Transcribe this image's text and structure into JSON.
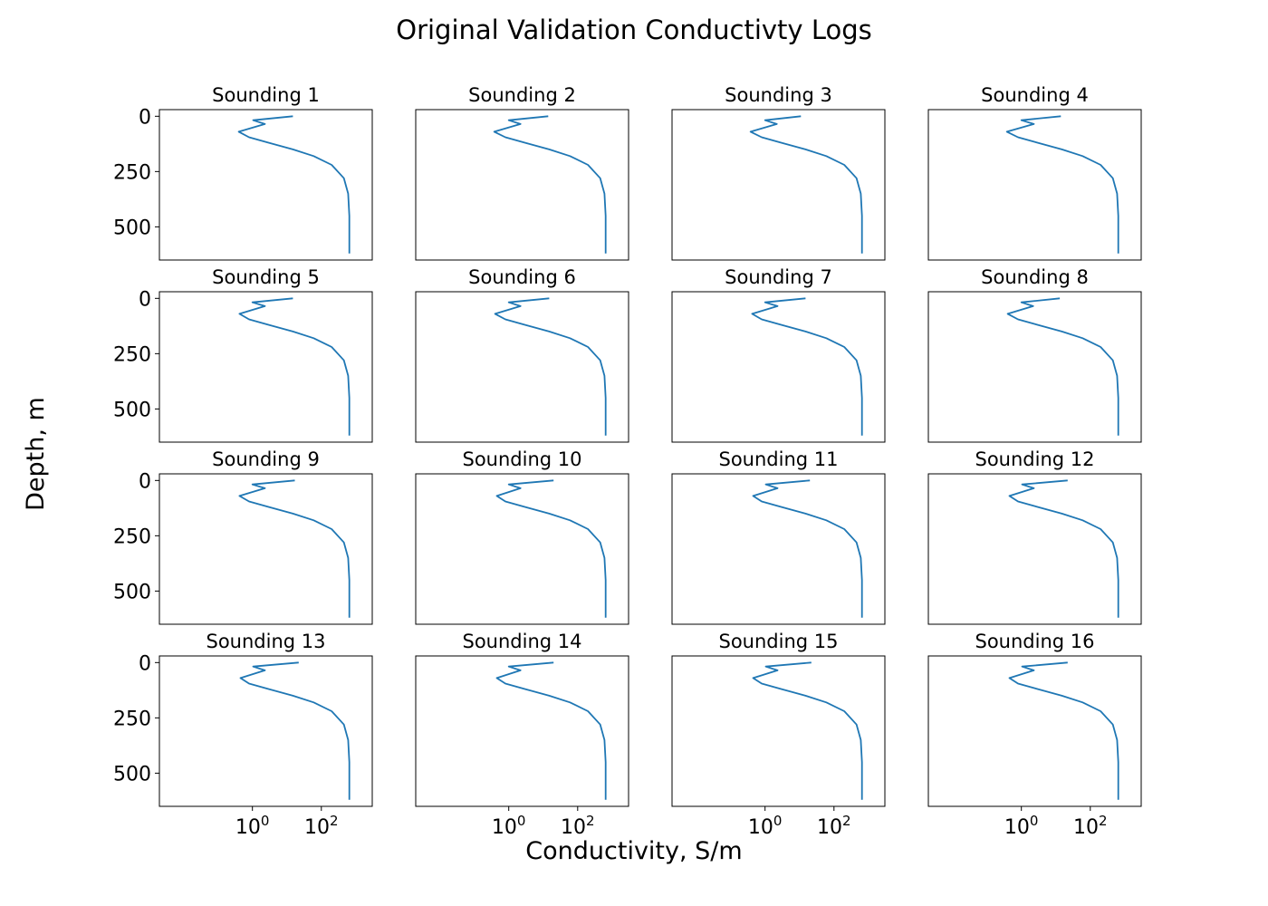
{
  "figure": {
    "title": "Original Validation Conductivty Logs",
    "xlabel": "Conductivity, S/m",
    "ylabel": "Depth, m"
  },
  "chart_data": {
    "type": "line",
    "layout": "4x4 grid of subplots",
    "x_scale": "log",
    "y_inverted": true,
    "xlim": [
      0.002,
      3000
    ],
    "ylim": [
      650,
      -30
    ],
    "xticks": [
      {
        "value": 1,
        "label": "10^0"
      },
      {
        "value": 100,
        "label": "10^2"
      }
    ],
    "yticks": [
      0,
      250,
      500
    ],
    "grid": false,
    "line_color": "#1f77b4",
    "subplots": [
      {
        "title": "Sounding 1",
        "x": [
          15,
          1.05,
          2.3,
          0.4,
          0.8,
          3,
          15,
          60,
          200,
          450,
          600,
          650,
          650
        ],
        "y": [
          0,
          18,
          35,
          70,
          95,
          120,
          150,
          180,
          220,
          280,
          350,
          450,
          620
        ]
      },
      {
        "title": "Sounding 2",
        "x": [
          14,
          1.0,
          2.2,
          0.38,
          0.8,
          3,
          15,
          60,
          200,
          450,
          600,
          650,
          650
        ],
        "y": [
          0,
          18,
          35,
          70,
          95,
          120,
          150,
          180,
          220,
          280,
          350,
          450,
          620
        ]
      },
      {
        "title": "Sounding 3",
        "x": [
          11,
          1.0,
          2.2,
          0.38,
          0.8,
          3,
          15,
          60,
          200,
          450,
          600,
          650,
          650
        ],
        "y": [
          0,
          18,
          35,
          70,
          95,
          120,
          150,
          180,
          220,
          280,
          350,
          450,
          620
        ]
      },
      {
        "title": "Sounding 4",
        "x": [
          14,
          1.0,
          2.3,
          0.38,
          0.8,
          3,
          15,
          60,
          200,
          450,
          600,
          650,
          650
        ],
        "y": [
          0,
          18,
          35,
          70,
          95,
          120,
          150,
          180,
          220,
          280,
          350,
          450,
          620
        ]
      },
      {
        "title": "Sounding 5",
        "x": [
          15,
          1.0,
          2.3,
          0.42,
          0.8,
          3,
          15,
          60,
          200,
          450,
          600,
          650,
          650
        ],
        "y": [
          0,
          18,
          35,
          70,
          95,
          120,
          150,
          180,
          220,
          280,
          350,
          450,
          620
        ]
      },
      {
        "title": "Sounding 6",
        "x": [
          15,
          1.0,
          2.2,
          0.4,
          0.8,
          3,
          15,
          60,
          200,
          450,
          600,
          650,
          650
        ],
        "y": [
          0,
          18,
          35,
          70,
          95,
          120,
          150,
          180,
          220,
          280,
          350,
          450,
          620
        ]
      },
      {
        "title": "Sounding 7",
        "x": [
          15,
          1.0,
          2.3,
          0.42,
          0.8,
          3,
          15,
          60,
          200,
          450,
          600,
          650,
          650
        ],
        "y": [
          0,
          18,
          35,
          70,
          95,
          120,
          150,
          180,
          220,
          280,
          350,
          450,
          620
        ]
      },
      {
        "title": "Sounding 8",
        "x": [
          13,
          1.0,
          2.2,
          0.4,
          0.8,
          3,
          15,
          60,
          200,
          450,
          600,
          650,
          650
        ],
        "y": [
          0,
          18,
          35,
          70,
          95,
          120,
          150,
          180,
          220,
          280,
          350,
          450,
          620
        ]
      },
      {
        "title": "Sounding 9",
        "x": [
          17,
          1.0,
          2.3,
          0.42,
          0.8,
          3,
          15,
          60,
          200,
          450,
          600,
          650,
          650
        ],
        "y": [
          0,
          18,
          35,
          70,
          95,
          120,
          150,
          180,
          220,
          280,
          350,
          450,
          620
        ]
      },
      {
        "title": "Sounding 10",
        "x": [
          20,
          1.0,
          2.2,
          0.45,
          0.8,
          3,
          15,
          60,
          200,
          450,
          600,
          650,
          650
        ],
        "y": [
          0,
          18,
          35,
          70,
          95,
          120,
          150,
          180,
          220,
          280,
          350,
          450,
          620
        ]
      },
      {
        "title": "Sounding 11",
        "x": [
          20,
          1.05,
          2.3,
          0.45,
          0.8,
          3,
          15,
          60,
          200,
          450,
          600,
          650,
          650
        ],
        "y": [
          0,
          18,
          35,
          70,
          95,
          120,
          150,
          180,
          220,
          280,
          350,
          450,
          620
        ]
      },
      {
        "title": "Sounding 12",
        "x": [
          22,
          1.05,
          2.3,
          0.45,
          0.8,
          3,
          15,
          60,
          200,
          450,
          600,
          650,
          650
        ],
        "y": [
          0,
          18,
          35,
          70,
          95,
          120,
          150,
          180,
          220,
          280,
          350,
          450,
          620
        ]
      },
      {
        "title": "Sounding 13",
        "x": [
          22,
          1.05,
          2.3,
          0.45,
          0.8,
          3,
          15,
          60,
          200,
          450,
          600,
          650,
          650
        ],
        "y": [
          0,
          18,
          35,
          70,
          95,
          120,
          150,
          180,
          220,
          280,
          350,
          450,
          620
        ]
      },
      {
        "title": "Sounding 14",
        "x": [
          20,
          1.0,
          2.2,
          0.45,
          0.8,
          3,
          15,
          60,
          200,
          450,
          600,
          650,
          650
        ],
        "y": [
          0,
          18,
          35,
          70,
          95,
          120,
          150,
          180,
          220,
          280,
          350,
          450,
          620
        ]
      },
      {
        "title": "Sounding 15",
        "x": [
          22,
          1.05,
          2.3,
          0.45,
          0.8,
          3,
          15,
          60,
          200,
          450,
          600,
          650,
          650
        ],
        "y": [
          0,
          18,
          35,
          70,
          95,
          120,
          150,
          180,
          220,
          280,
          350,
          450,
          620
        ]
      },
      {
        "title": "Sounding 16",
        "x": [
          22,
          1.05,
          2.3,
          0.45,
          0.8,
          3,
          15,
          60,
          200,
          450,
          600,
          650,
          650
        ],
        "y": [
          0,
          18,
          35,
          70,
          95,
          120,
          150,
          180,
          220,
          280,
          350,
          450,
          620
        ]
      }
    ]
  }
}
